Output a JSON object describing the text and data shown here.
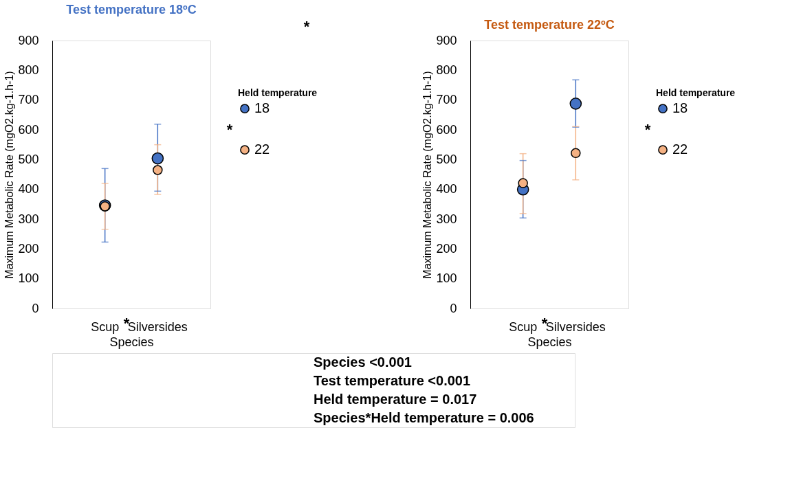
{
  "chart_data": [
    {
      "type": "scatter",
      "title": "Test temperature 18ºC",
      "xlabel": "Species",
      "ylabel": "Maximum Metabolic Rate (mgO2.kg-1.h-1)",
      "legend_title": "Held temperature",
      "categories": [
        "Scup",
        "Silversides"
      ],
      "ylim": [
        0,
        900
      ],
      "yticks": [
        0,
        100,
        200,
        300,
        400,
        500,
        600,
        700,
        800,
        900
      ],
      "grid": false,
      "legend": "right",
      "marker": "circle",
      "series": [
        {
          "name": "18",
          "color": "#4472c4",
          "values": [
            346,
            504
          ],
          "errors": [
            [
              223,
              470
            ],
            [
              394,
              619
            ]
          ]
        },
        {
          "name": "22",
          "color": "#f4b183",
          "values": [
            343,
            465
          ],
          "errors": [
            [
              266,
              420
            ],
            [
              383,
              550
            ]
          ]
        }
      ],
      "annotations": [
        "*",
        "*",
        "*"
      ]
    },
    {
      "type": "scatter",
      "title": "Test temperature 22ºC",
      "xlabel": "Species",
      "ylabel": "Maximum Metabolic Rate (mgO2.kg-1.h-1)",
      "legend_title": "Held temperature",
      "categories": [
        "Scup",
        "Silversides"
      ],
      "ylim": [
        0,
        900
      ],
      "yticks": [
        0,
        100,
        200,
        300,
        400,
        500,
        600,
        700,
        800,
        900
      ],
      "grid": false,
      "legend": "right",
      "marker": "circle",
      "series": [
        {
          "name": "18",
          "color": "#4472c4",
          "values": [
            400,
            688
          ],
          "errors": [
            [
              304,
              497
            ],
            [
              609,
              768
            ]
          ]
        },
        {
          "name": "22",
          "color": "#f4b183",
          "values": [
            421,
            522
          ],
          "errors": [
            [
              319,
              520
            ],
            [
              432,
              611
            ]
          ]
        }
      ],
      "annotations": [
        "*",
        "*",
        "Species <0.001",
        "Test temperature <0.001",
        "Held temperature = 0.017",
        "Species*Held temperature = 0.006"
      ]
    }
  ]
}
